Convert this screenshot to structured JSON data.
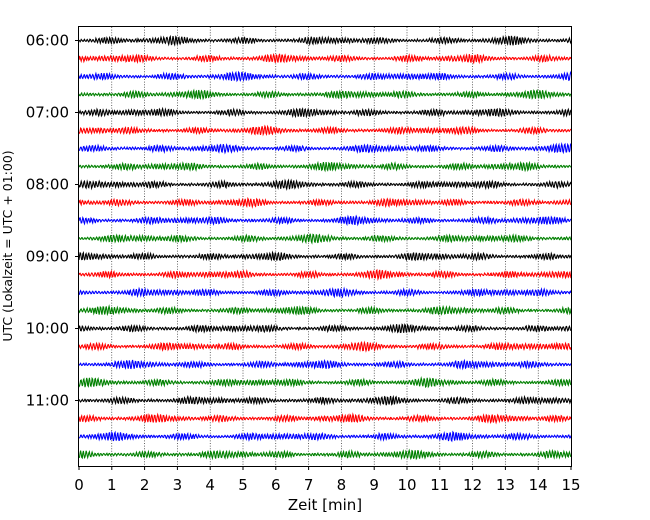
{
  "chart_data": {
    "type": "line",
    "title": "",
    "xlabel": "Zeit  [min]",
    "ylabel": "UTC (Lokalzeit = UTC + 01:00)",
    "xlim": [
      0,
      15
    ],
    "x_ticks": [
      0,
      1,
      2,
      3,
      4,
      5,
      6,
      7,
      8,
      9,
      10,
      11,
      12,
      13,
      14,
      15
    ],
    "x_tick_labels": [
      "0",
      "1",
      "2",
      "3",
      "4",
      "5",
      "6",
      "7",
      "8",
      "9",
      "10",
      "11",
      "12",
      "13",
      "14",
      "15"
    ],
    "y_tick_labels": [
      "06:00",
      "07:00",
      "08:00",
      "09:00",
      "10:00",
      "11:00"
    ],
    "grid": "vertical dotted",
    "trace_minutes": 15,
    "traces_per_hour": 4,
    "trace_colors": [
      "#000000",
      "#ff0000",
      "#0000ff",
      "#008000"
    ],
    "series": [
      {
        "start": "06:00",
        "color": "#000000"
      },
      {
        "start": "06:15",
        "color": "#ff0000"
      },
      {
        "start": "06:30",
        "color": "#0000ff"
      },
      {
        "start": "06:45",
        "color": "#008000"
      },
      {
        "start": "07:00",
        "color": "#000000"
      },
      {
        "start": "07:15",
        "color": "#ff0000"
      },
      {
        "start": "07:30",
        "color": "#0000ff"
      },
      {
        "start": "07:45",
        "color": "#008000"
      },
      {
        "start": "08:00",
        "color": "#000000"
      },
      {
        "start": "08:15",
        "color": "#ff0000"
      },
      {
        "start": "08:30",
        "color": "#0000ff"
      },
      {
        "start": "08:45",
        "color": "#008000"
      },
      {
        "start": "09:00",
        "color": "#000000"
      },
      {
        "start": "09:15",
        "color": "#ff0000"
      },
      {
        "start": "09:30",
        "color": "#0000ff"
      },
      {
        "start": "09:45",
        "color": "#008000"
      },
      {
        "start": "10:00",
        "color": "#000000"
      },
      {
        "start": "10:15",
        "color": "#ff0000"
      },
      {
        "start": "10:30",
        "color": "#0000ff"
      },
      {
        "start": "10:45",
        "color": "#008000"
      },
      {
        "start": "11:00",
        "color": "#000000"
      },
      {
        "start": "11:15",
        "color": "#ff0000"
      },
      {
        "start": "11:30",
        "color": "#0000ff"
      },
      {
        "start": "11:45",
        "color": "#008000"
      }
    ]
  }
}
